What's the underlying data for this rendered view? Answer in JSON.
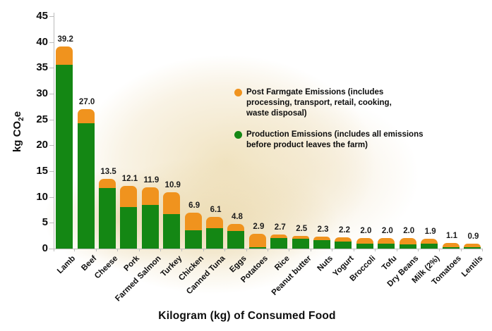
{
  "chart_data": {
    "type": "bar",
    "stacked": true,
    "title": "",
    "xlabel": "Kilogram (kg) of Consumed Food",
    "ylabel": "kg CO2e",
    "ylabel_parts": {
      "prefix": "kg CO",
      "sub": "2",
      "suffix": "e"
    },
    "ylim": [
      0,
      45
    ],
    "yticks": [
      0,
      5,
      10,
      15,
      20,
      25,
      30,
      35,
      40,
      45
    ],
    "grid": false,
    "legend_position": "center-right",
    "axis_color": "#bcbcbc",
    "paper_blob_color": "#f0e3c4",
    "categories": [
      "Lamb",
      "Beef",
      "Cheese",
      "Pork",
      "Farmed Salmon",
      "Turkey",
      "Chicken",
      "Canned Tuna",
      "Eggs",
      "Potatoes",
      "Rice",
      "Peanut butter",
      "Nuts",
      "Yogurt",
      "Broccoli",
      "Tofu",
      "Dry Beans",
      "Milk (2%)",
      "Tomatoes",
      "Lentils"
    ],
    "totals": [
      39.2,
      27.0,
      13.5,
      12.1,
      11.9,
      10.9,
      6.9,
      6.1,
      4.8,
      2.9,
      2.7,
      2.5,
      2.3,
      2.2,
      2.0,
      2.0,
      2.0,
      1.9,
      1.1,
      0.9
    ],
    "total_labels": [
      "39.2",
      "27.0",
      "13.5",
      "12.1",
      "11.9",
      "10.9",
      "6.9",
      "6.1",
      "4.8",
      "2.9",
      "2.7",
      "2.5",
      "2.3",
      "2.2",
      "2.0",
      "2.0",
      "2.0",
      "1.9",
      "1.1",
      "0.9"
    ],
    "series": [
      {
        "name": "Production Emissions",
        "color": "#148714",
        "values": [
          35.6,
          24.3,
          11.7,
          8.1,
          8.5,
          6.7,
          3.5,
          3.9,
          3.4,
          0.3,
          2.1,
          1.9,
          1.6,
          1.4,
          0.9,
          1.0,
          0.8,
          1.0,
          0.3,
          0.25
        ]
      },
      {
        "name": "Post Farmgate Emissions",
        "color": "#F0931E",
        "values": [
          3.6,
          2.7,
          1.8,
          4.0,
          3.4,
          4.2,
          3.4,
          2.2,
          1.4,
          2.6,
          0.6,
          0.6,
          0.7,
          0.8,
          1.1,
          1.0,
          1.2,
          0.9,
          0.8,
          0.65
        ]
      }
    ],
    "legend": {
      "items": [
        {
          "swatch_color": "#F0931E",
          "text": "Post Farmgate Emissions (includes\nprocessing, transport, retail, cooking,\nwaste disposal)"
        },
        {
          "swatch_color": "#148714",
          "text": "Production Emissions (includes all emissions\nbefore product leaves the farm)"
        }
      ]
    }
  }
}
